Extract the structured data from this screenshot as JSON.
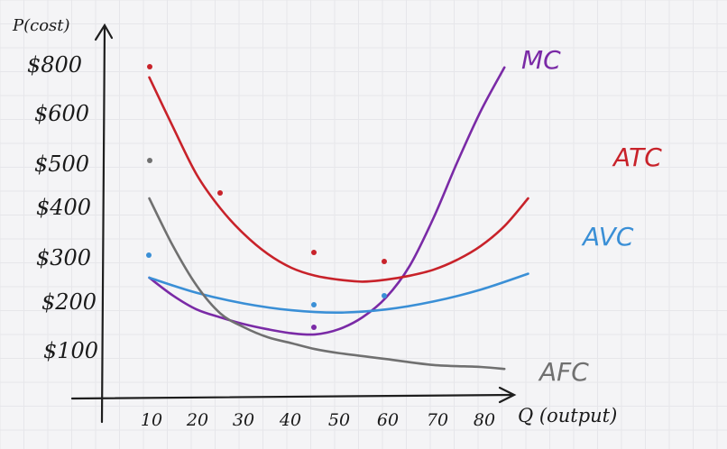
{
  "chart_data": {
    "type": "line",
    "title": "",
    "ylabel": "P(cost)",
    "xlabel": "Q (output)",
    "x_ticks": [
      "10",
      "20",
      "30",
      "40",
      "50",
      "60",
      "70",
      "80"
    ],
    "y_ticks": [
      "$100",
      "$200",
      "$300",
      "$400",
      "$500",
      "$600",
      "$800"
    ],
    "xlim": [
      0,
      90
    ],
    "ylim": [
      0,
      900
    ],
    "grid": true,
    "series": [
      {
        "name": "MC",
        "color": "#7a2aa6",
        "x": [
          10,
          15,
          20,
          25,
          30,
          35,
          40,
          45,
          50,
          55,
          60,
          65,
          70,
          75,
          80,
          85
        ],
        "y": [
          300,
          255,
          220,
          200,
          183,
          170,
          160,
          157,
          170,
          200,
          250,
          330,
          450,
          590,
          720,
          830
        ]
      },
      {
        "name": "ATC",
        "color": "#c8222a",
        "x": [
          10,
          15,
          20,
          25,
          30,
          35,
          40,
          45,
          50,
          55,
          60,
          65,
          70,
          75,
          80,
          85,
          90
        ],
        "y": [
          805,
          680,
          560,
          475,
          410,
          360,
          325,
          305,
          295,
          290,
          295,
          305,
          320,
          345,
          380,
          430,
          500
        ]
      },
      {
        "name": "AVC",
        "color": "#3a8fd6",
        "x": [
          10,
          20,
          30,
          40,
          50,
          60,
          70,
          80,
          90
        ],
        "y": [
          300,
          262,
          235,
          218,
          212,
          220,
          240,
          270,
          310
        ]
      },
      {
        "name": "AFC",
        "color": "#707070",
        "x": [
          10,
          15,
          20,
          25,
          30,
          35,
          40,
          45,
          50,
          60,
          70,
          80,
          85
        ],
        "y": [
          500,
          380,
          280,
          210,
          175,
          150,
          135,
          120,
          110,
          95,
          80,
          75,
          70
        ]
      }
    ],
    "series_labels": [
      "MC",
      "ATC",
      "AVC",
      "AFC"
    ]
  }
}
